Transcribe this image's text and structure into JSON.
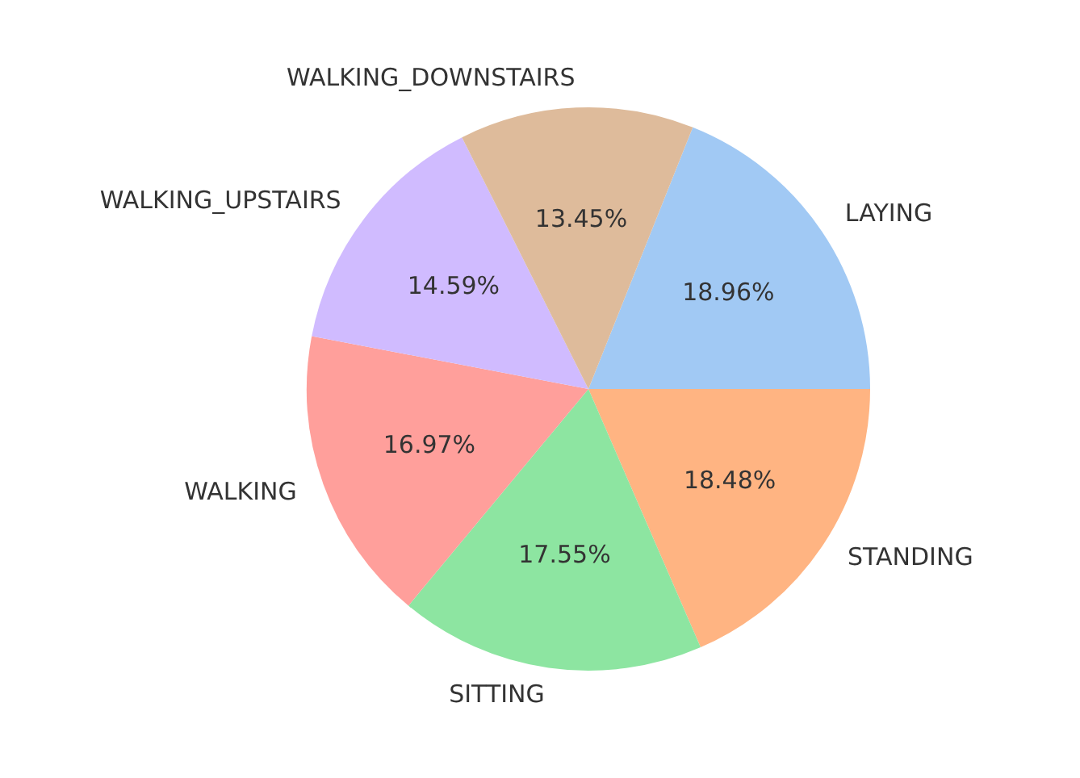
{
  "chart_data": {
    "type": "pie",
    "categories": [
      "LAYING",
      "STANDING",
      "SITTING",
      "WALKING",
      "WALKING_UPSTAIRS",
      "WALKING_DOWNSTAIRS"
    ],
    "values": [
      18.96,
      18.48,
      17.55,
      16.97,
      14.59,
      13.45
    ],
    "value_labels": [
      "18.96%",
      "18.48%",
      "17.55%",
      "16.97%",
      "14.59%",
      "13.45%"
    ],
    "colors": [
      "#a1c9f4",
      "#ffb482",
      "#8de5a1",
      "#ff9f9b",
      "#d0bbff",
      "#debb9b"
    ],
    "legend": false
  }
}
